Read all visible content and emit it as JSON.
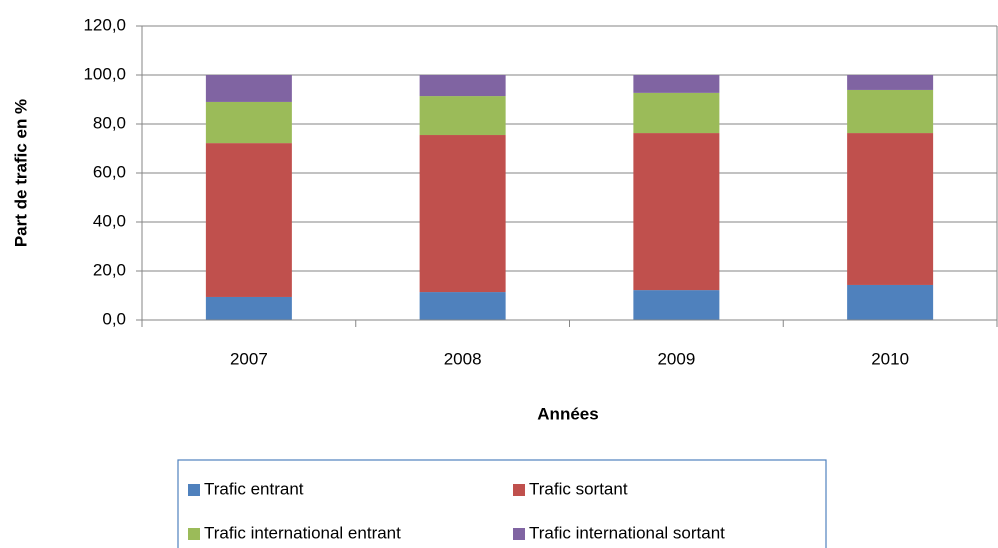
{
  "chart_data": {
    "type": "stacked_bar",
    "categories": [
      "2007",
      "2008",
      "2009",
      "2010"
    ],
    "series": [
      {
        "name": "Trafic entrant",
        "color": "#4f81bd",
        "values": [
          9.4,
          11.4,
          12.2,
          14.3
        ]
      },
      {
        "name": "Trafic sortant",
        "color": "#c0504d",
        "values": [
          62.8,
          64.1,
          64.1,
          62.0
        ]
      },
      {
        "name": "Trafic international entrant",
        "color": "#9bbb59",
        "values": [
          16.8,
          15.9,
          16.4,
          17.6
        ]
      },
      {
        "name": "Trafic international sortant",
        "color": "#8064a2",
        "values": [
          11.0,
          8.6,
          7.3,
          6.1
        ]
      }
    ],
    "ylabel": "Part de trafic en %",
    "xlabel": "Années",
    "ylim": [
      0,
      120
    ],
    "yticks": [
      {
        "value": 0,
        "label": "0,0"
      },
      {
        "value": 20,
        "label": "20,0"
      },
      {
        "value": 40,
        "label": "40,0"
      },
      {
        "value": 60,
        "label": "60,0"
      },
      {
        "value": 80,
        "label": "80,0"
      },
      {
        "value": 100,
        "label": "100,0"
      },
      {
        "value": 120,
        "label": "120,0"
      }
    ],
    "grid": true,
    "legend": "bottom"
  }
}
